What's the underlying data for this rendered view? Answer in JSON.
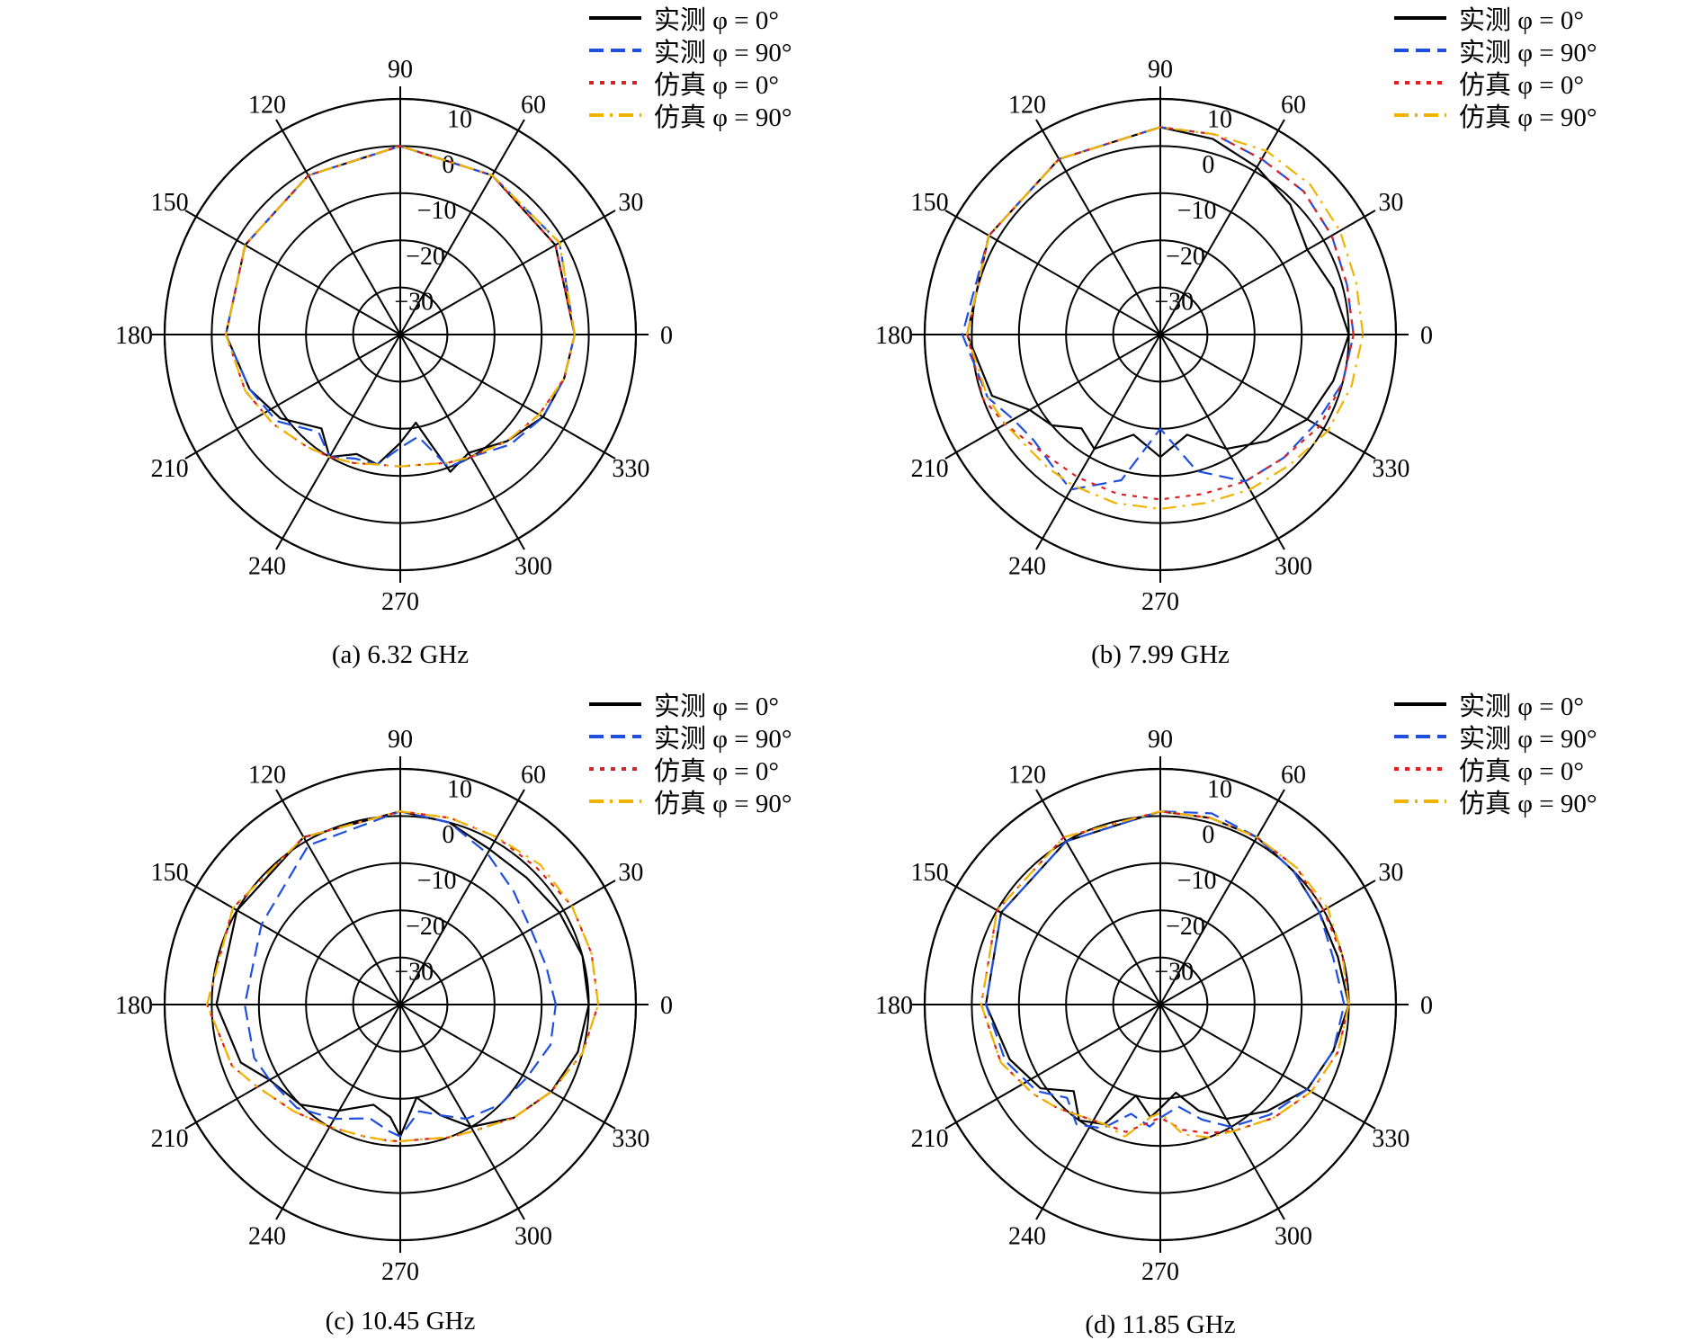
{
  "chart_data": [
    {
      "type": "polar-line",
      "caption": "(a) 6.32 GHz",
      "angle_labels": [
        "0",
        "30",
        "60",
        "90",
        "120",
        "150",
        "180",
        "210",
        "240",
        "270",
        "300",
        "330"
      ],
      "radial_labels": [
        "10",
        "0",
        "−10",
        "−20",
        "−30"
      ],
      "radial_range": [
        -40,
        10
      ],
      "series": [
        {
          "name": "实测 φ = 0°",
          "style": "solid",
          "color": "#000000",
          "theta": [
            0,
            30,
            60,
            90,
            120,
            150,
            180,
            200,
            215,
            230,
            240,
            250,
            260,
            270,
            280,
            290,
            300,
            315,
            330,
            345
          ],
          "values": [
            -3,
            -2,
            -1,
            0,
            -1,
            -2,
            -3,
            -6,
            -9,
            -14,
            -10,
            -13,
            -12,
            -17,
            -21,
            -9,
            -11,
            -8,
            -5,
            -4
          ]
        },
        {
          "name": "实测 φ = 90°",
          "style": "dashed",
          "color": "#1f4fe0",
          "theta": [
            0,
            30,
            60,
            90,
            120,
            150,
            180,
            200,
            215,
            230,
            240,
            250,
            260,
            270,
            280,
            290,
            300,
            315,
            330,
            345
          ],
          "values": [
            -3,
            -1,
            -1,
            0,
            -1,
            -2,
            -3,
            -6,
            -8,
            -13,
            -10,
            -12,
            -12,
            -16,
            -18,
            -10,
            -10,
            -7,
            -5,
            -4
          ]
        },
        {
          "name": "仿真 φ = 0°",
          "style": "dotted",
          "color": "#e02020",
          "theta": [
            0,
            30,
            60,
            90,
            120,
            150,
            180,
            200,
            215,
            230,
            240,
            250,
            260,
            270,
            280,
            290,
            300,
            315,
            330,
            345
          ],
          "values": [
            -3,
            -2,
            -1,
            0,
            -1,
            -2,
            -3,
            -5,
            -7,
            -9,
            -10,
            -11,
            -12,
            -12,
            -12,
            -11,
            -10,
            -8,
            -6,
            -4
          ]
        },
        {
          "name": "仿真 φ = 90°",
          "style": "dashdot",
          "color": "#f0b400",
          "theta": [
            0,
            30,
            60,
            90,
            120,
            150,
            180,
            200,
            215,
            230,
            240,
            250,
            260,
            270,
            280,
            290,
            300,
            315,
            330,
            345
          ],
          "values": [
            -3,
            -1,
            -1,
            0,
            -1,
            -2,
            -3,
            -5,
            -7,
            -9,
            -10,
            -11,
            -12,
            -12,
            -12,
            -11,
            -10,
            -8,
            -6,
            -4
          ]
        }
      ]
    },
    {
      "type": "polar-line",
      "caption": "(b) 7.99 GHz",
      "angle_labels": [
        "0",
        "30",
        "60",
        "90",
        "120",
        "150",
        "180",
        "210",
        "240",
        "270",
        "300",
        "330"
      ],
      "radial_labels": [
        "10",
        "0",
        "−10",
        "−20",
        "−30"
      ],
      "radial_range": [
        -40,
        10
      ],
      "series": [
        {
          "name": "实测 φ = 0°",
          "style": "solid",
          "color": "#000000",
          "theta": [
            0,
            15,
            30,
            45,
            60,
            75,
            90,
            120,
            150,
            180,
            200,
            210,
            220,
            230,
            240,
            255,
            270,
            285,
            300,
            315,
            330,
            345
          ],
          "values": [
            0,
            -2,
            -4,
            -1,
            1,
            3,
            4,
            3,
            2,
            1,
            -2,
            -8,
            -10,
            -14,
            -12,
            -18,
            -14,
            -18,
            -12,
            -8,
            -4,
            -2
          ]
        },
        {
          "name": "实测 φ = 90°",
          "style": "dashed",
          "color": "#1f4fe0",
          "theta": [
            0,
            15,
            30,
            45,
            60,
            75,
            90,
            120,
            150,
            180,
            200,
            210,
            220,
            230,
            240,
            255,
            270,
            285,
            300,
            315,
            330,
            345
          ],
          "values": [
            1,
            1,
            2,
            3,
            3,
            4,
            4,
            3,
            2,
            2,
            -1,
            -4,
            -5,
            -4,
            -2,
            -8,
            -20,
            -10,
            -4,
            -3,
            -2,
            0
          ]
        },
        {
          "name": "仿真 φ = 0°",
          "style": "dotted",
          "color": "#e02020",
          "theta": [
            0,
            15,
            30,
            45,
            60,
            75,
            90,
            120,
            150,
            180,
            200,
            210,
            220,
            230,
            240,
            255,
            270,
            285,
            300,
            315,
            330,
            345
          ],
          "values": [
            1,
            1,
            2,
            3,
            3,
            4,
            4,
            3,
            2,
            1,
            0,
            -2,
            -4,
            -5,
            -5,
            -5,
            -5,
            -5,
            -4,
            -3,
            -1,
            0
          ]
        },
        {
          "name": "仿真 φ = 90°",
          "style": "dashdot",
          "color": "#f0b400",
          "theta": [
            0,
            15,
            30,
            45,
            60,
            75,
            90,
            120,
            150,
            180,
            200,
            210,
            220,
            230,
            240,
            255,
            270,
            285,
            300,
            315,
            330,
            345
          ],
          "values": [
            3,
            3,
            4,
            5,
            5,
            4,
            4,
            3,
            2,
            1,
            -1,
            -2,
            -3,
            -3,
            -3,
            -3,
            -3,
            -3,
            -2,
            -1,
            1,
            2
          ]
        }
      ]
    },
    {
      "type": "polar-line",
      "caption": "(c) 10.45 GHz",
      "angle_labels": [
        "0",
        "30",
        "60",
        "90",
        "120",
        "150",
        "180",
        "210",
        "240",
        "270",
        "300",
        "330"
      ],
      "radial_labels": [
        "10",
        "0",
        "−10",
        "−20",
        "−30"
      ],
      "radial_range": [
        -40,
        10
      ],
      "series": [
        {
          "name": "实测 φ = 0°",
          "style": "solid",
          "color": "#000000",
          "theta": [
            0,
            15,
            30,
            45,
            60,
            75,
            90,
            120,
            150,
            180,
            200,
            210,
            225,
            240,
            255,
            265,
            270,
            280,
            290,
            300,
            315,
            330,
            345
          ],
          "values": [
            0,
            0,
            -1,
            -2,
            -2,
            0,
            1,
            1,
            0,
            -1,
            -4,
            -8,
            -10,
            -14,
            -18,
            -16,
            -12,
            -20,
            -15,
            -10,
            -6,
            -3,
            -1
          ]
        },
        {
          "name": "实测 φ = 90°",
          "style": "dashed",
          "color": "#1f4fe0",
          "theta": [
            0,
            15,
            30,
            45,
            60,
            75,
            90,
            120,
            150,
            180,
            200,
            210,
            225,
            240,
            255,
            265,
            270,
            280,
            290,
            300,
            315,
            330,
            345
          ],
          "values": [
            -7,
            -8,
            -8,
            -6,
            -3,
            0,
            1,
            -1,
            -6,
            -7,
            -7,
            -8,
            -9,
            -12,
            -15,
            -13,
            -12,
            -17,
            -15,
            -12,
            -10,
            -9,
            -7
          ]
        },
        {
          "name": "仿真 φ = 0°",
          "style": "dotted",
          "color": "#e02020",
          "theta": [
            0,
            15,
            30,
            45,
            60,
            75,
            90,
            120,
            150,
            180,
            200,
            210,
            225,
            240,
            255,
            265,
            270,
            280,
            290,
            300,
            315,
            330,
            345
          ],
          "values": [
            2,
            2,
            2,
            1,
            1,
            1,
            1,
            1,
            1,
            1,
            -2,
            -5,
            -8,
            -10,
            -11,
            -11,
            -11,
            -11,
            -10,
            -9,
            -6,
            -3,
            0
          ]
        },
        {
          "name": "仿真 φ = 90°",
          "style": "dashdot",
          "color": "#f0b400",
          "theta": [
            0,
            15,
            30,
            45,
            60,
            75,
            90,
            120,
            150,
            180,
            200,
            210,
            225,
            240,
            255,
            265,
            270,
            280,
            290,
            300,
            315,
            330,
            345
          ],
          "values": [
            2,
            2,
            2,
            2,
            1,
            1,
            1,
            1,
            1,
            1,
            -2,
            -5,
            -8,
            -10,
            -11,
            -11,
            -11,
            -11,
            -10,
            -9,
            -6,
            -3,
            0
          ]
        }
      ]
    },
    {
      "type": "polar-line",
      "caption": "(d) 11.85 GHz",
      "angle_labels": [
        "0",
        "30",
        "60",
        "90",
        "120",
        "150",
        "180",
        "210",
        "240",
        "270",
        "300",
        "330"
      ],
      "radial_labels": [
        "10",
        "0",
        "−10",
        "−20",
        "−30"
      ],
      "radial_range": [
        -40,
        10
      ],
      "series": [
        {
          "name": "实测 φ = 0°",
          "style": "solid",
          "color": "#000000",
          "theta": [
            0,
            15,
            30,
            45,
            60,
            75,
            90,
            120,
            150,
            180,
            200,
            215,
            225,
            235,
            245,
            255,
            265,
            270,
            280,
            290,
            300,
            315,
            330,
            345
          ],
          "values": [
            0,
            -1,
            -1,
            0,
            1,
            1,
            1,
            0,
            -1,
            -3,
            -6,
            -9,
            -14,
            -10,
            -12,
            -20,
            -16,
            -18,
            -21,
            -16,
            -12,
            -8,
            -4,
            -2
          ]
        },
        {
          "name": "实测 φ = 90°",
          "style": "dashed",
          "color": "#1f4fe0",
          "theta": [
            0,
            15,
            30,
            45,
            60,
            75,
            90,
            120,
            150,
            180,
            200,
            215,
            225,
            235,
            245,
            255,
            265,
            270,
            280,
            290,
            300,
            315,
            330,
            345
          ],
          "values": [
            -1,
            -2,
            -1,
            0,
            1,
            2,
            1,
            0,
            -1,
            -3,
            -5,
            -8,
            -12,
            -9,
            -11,
            -16,
            -14,
            -16,
            -18,
            -14,
            -10,
            -7,
            -4,
            -2
          ]
        },
        {
          "name": "仿真 φ = 0°",
          "style": "dotted",
          "color": "#e02020",
          "theta": [
            0,
            15,
            30,
            45,
            60,
            75,
            90,
            120,
            150,
            180,
            200,
            215,
            225,
            235,
            245,
            255,
            265,
            270,
            280,
            290,
            300,
            315,
            330,
            345
          ],
          "values": [
            0,
            0,
            0,
            1,
            1,
            1,
            1,
            1,
            0,
            -2,
            -4,
            -7,
            -9,
            -11,
            -12,
            -12,
            -15,
            -16,
            -13,
            -11,
            -9,
            -6,
            -3,
            -1
          ]
        },
        {
          "name": "仿真 φ = 90°",
          "style": "dashdot",
          "color": "#f0b400",
          "theta": [
            0,
            15,
            30,
            45,
            60,
            75,
            90,
            120,
            150,
            180,
            200,
            215,
            225,
            235,
            245,
            255,
            265,
            270,
            280,
            290,
            300,
            315,
            330,
            345
          ],
          "values": [
            0,
            0,
            1,
            1,
            1,
            1,
            1,
            1,
            0,
            -2,
            -4,
            -7,
            -9,
            -11,
            -12,
            -11,
            -16,
            -17,
            -12,
            -10,
            -9,
            -6,
            -3,
            -1
          ]
        }
      ]
    }
  ]
}
